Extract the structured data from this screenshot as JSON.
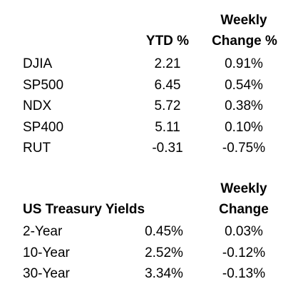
{
  "indices": {
    "headers": {
      "ytd": "YTD %",
      "weekly_line1": "Weekly",
      "weekly_line2": "Change %"
    },
    "rows": [
      {
        "name": "DJIA",
        "ytd": "2.21",
        "weekly": "0.91%"
      },
      {
        "name": "SP500",
        "ytd": "6.45",
        "weekly": "0.54%"
      },
      {
        "name": "NDX",
        "ytd": "5.72",
        "weekly": "0.38%"
      },
      {
        "name": "SP400",
        "ytd": "5.11",
        "weekly": "0.10%"
      },
      {
        "name": "RUT",
        "ytd": "-0.31",
        "weekly": "-0.75%"
      }
    ]
  },
  "treasury": {
    "headers": {
      "title": "US Treasury Yields",
      "weekly_line1": "Weekly",
      "weekly_line2": "Change"
    },
    "rows": [
      {
        "name": "2-Year",
        "yield": "0.45%",
        "weekly": "0.03%"
      },
      {
        "name": "10-Year",
        "yield": "2.52%",
        "weekly": "-0.12%"
      },
      {
        "name": "30-Year",
        "yield": "3.34%",
        "weekly": "-0.13%"
      }
    ]
  }
}
